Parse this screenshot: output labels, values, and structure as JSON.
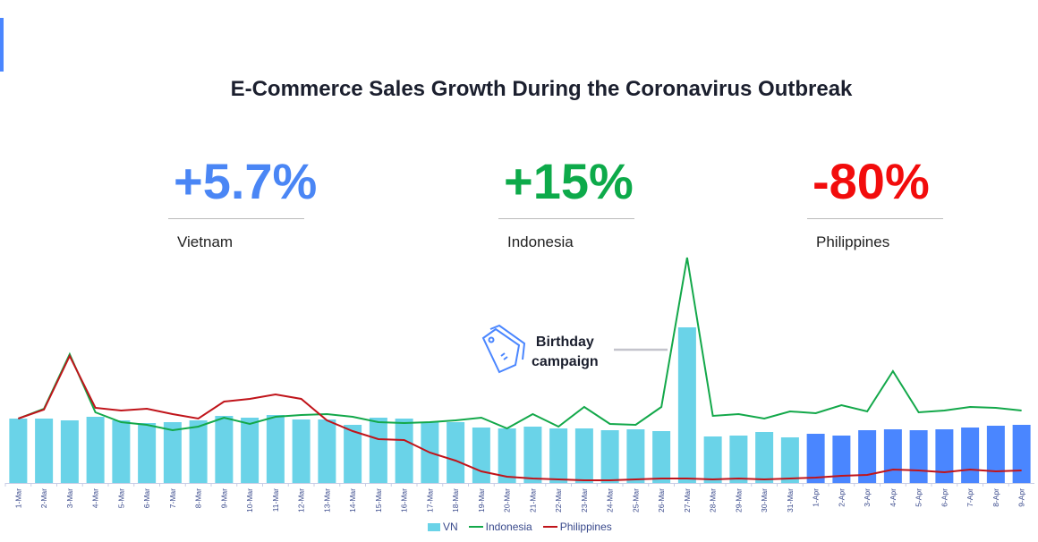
{
  "title": "E-Commerce Sales Growth During the Coronavirus Outbreak",
  "kpis": [
    {
      "value": "+5.7%",
      "label": "Vietnam",
      "color": "#4A86F5"
    },
    {
      "value": "+15%",
      "label": "Indonesia",
      "color": "#0DAA4A"
    },
    {
      "value": "-80%",
      "label": "Philippines",
      "color": "#F20C0C"
    }
  ],
  "annotation": {
    "line1": "Birthday",
    "line2": "campaign",
    "icon": "price-tags-icon"
  },
  "chart_data": {
    "type": "bar+line",
    "categories": [
      "1-Mar",
      "2-Mar",
      "3-Mar",
      "4-Mar",
      "5-Mar",
      "6-Mar",
      "7-Mar",
      "8-Mar",
      "9-Mar",
      "10-Mar",
      "11-Mar",
      "12-Mar",
      "13-Mar",
      "14-Mar",
      "15-Mar",
      "16-Mar",
      "17-Mar",
      "18-Mar",
      "19-Mar",
      "20-Mar",
      "21-Mar",
      "22-Mar",
      "23-Mar",
      "24-Mar",
      "25-Mar",
      "26-Mar",
      "27-Mar",
      "28-Mar",
      "29-Mar",
      "30-Mar",
      "31-Mar",
      "1-Apr",
      "2-Apr",
      "3-Apr",
      "4-Apr",
      "5-Apr",
      "6-Apr",
      "7-Apr",
      "8-Apr",
      "9-Apr"
    ],
    "ylim": [
      0,
      252
    ],
    "y_axis_shown": false,
    "grid": false,
    "legend_position": "bottom",
    "series": [
      {
        "name": "VN",
        "type": "bar",
        "color": "#6AD3E8",
        "highlight_color": "#4A86FF",
        "highlight_from": "1-Apr",
        "values": [
          72,
          72,
          70,
          74,
          70,
          67,
          68,
          70,
          75,
          73,
          76,
          71,
          71,
          65,
          73,
          72,
          68,
          68,
          62,
          61,
          63,
          61,
          61,
          59,
          60,
          58,
          174,
          52,
          53,
          57,
          51,
          55,
          53,
          59,
          60,
          59,
          60,
          62,
          64,
          65
        ]
      },
      {
        "name": "Indonesia",
        "type": "line",
        "color": "#13A84A",
        "values": [
          72,
          83,
          144,
          79,
          68,
          65,
          59,
          63,
          73,
          66,
          74,
          76,
          77,
          74,
          68,
          67,
          68,
          70,
          73,
          61,
          77,
          63,
          85,
          66,
          65,
          85,
          252,
          75,
          77,
          72,
          80,
          78,
          87,
          80,
          125,
          79,
          81,
          85,
          84,
          81
        ]
      },
      {
        "name": "Philippines",
        "type": "line",
        "color": "#C0141A",
        "values": [
          72,
          82,
          142,
          84,
          81,
          83,
          77,
          72,
          91,
          94,
          99,
          94,
          70,
          58,
          49,
          48,
          34,
          25,
          13,
          7,
          5,
          4,
          3,
          3,
          4,
          5,
          5,
          4,
          5,
          4,
          5,
          6,
          8,
          9,
          15,
          14,
          12,
          15,
          13,
          14
        ]
      }
    ]
  }
}
